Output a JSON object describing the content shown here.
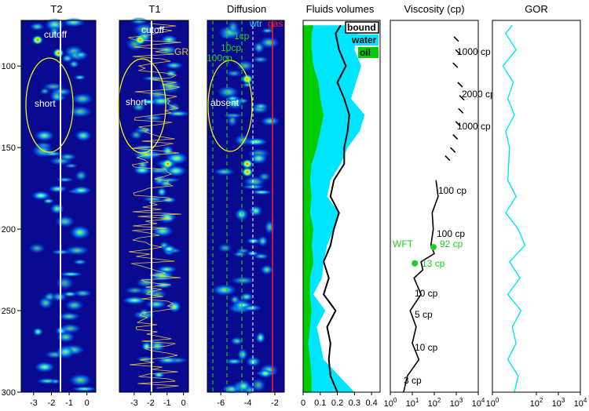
{
  "chart_data": [
    {
      "type": "heatmap",
      "title": "T2",
      "xticks": [
        "-3",
        "-2",
        "-1",
        "0"
      ],
      "yticks": [
        "100",
        "150",
        "200",
        "250",
        "300"
      ],
      "ylim": [
        300,
        72
      ],
      "annotations": {
        "cutoff": "cutoff",
        "short": "short"
      }
    },
    {
      "type": "heatmap",
      "title": "T1",
      "xticks": [
        "-3",
        "-2",
        "-1",
        "0"
      ],
      "annotations": {
        "cutoff": "cutoff",
        "short": "short",
        "gr": "GR"
      }
    },
    {
      "type": "heatmap",
      "title": "Diffusion",
      "xticks": [
        "-6",
        "-4",
        "-2"
      ],
      "annotations": {
        "wtr": "wtr",
        "gas": "gas",
        "cp1": "1cp",
        "cp10": "10cp",
        "cp100": "100cp",
        "absent": "absent"
      }
    },
    {
      "type": "area",
      "title": "Fluids volumes",
      "xticks": [
        "0",
        "0.1",
        "0.2",
        "0.3",
        "0.4"
      ],
      "xlim": [
        0,
        0.4
      ],
      "legend": [
        "bound",
        "water",
        "oil"
      ],
      "legend_position": "top-right",
      "depth": [
        75,
        80,
        90,
        100,
        110,
        120,
        130,
        140,
        150,
        160,
        170,
        180,
        190,
        200,
        210,
        220,
        230,
        240,
        250,
        260,
        270,
        280,
        290,
        300
      ],
      "bound": [
        0.22,
        0.19,
        0.21,
        0.25,
        0.2,
        0.24,
        0.27,
        0.26,
        0.24,
        0.24,
        0.18,
        0.16,
        0.21,
        0.18,
        0.16,
        0.12,
        0.15,
        0.12,
        0.19,
        0.14,
        0.16,
        0.15,
        0.16,
        0.2
      ],
      "total": [
        0.33,
        0.32,
        0.3,
        0.34,
        0.31,
        0.28,
        0.36,
        0.33,
        0.26,
        0.22,
        0.16,
        0.14,
        0.21,
        0.18,
        0.14,
        0.12,
        0.11,
        0.06,
        0.13,
        0.08,
        0.1,
        0.12,
        0.21,
        0.3
      ],
      "oil": [
        0.06,
        0.05,
        0.05,
        0.06,
        0.09,
        0.1,
        0.12,
        0.1,
        0.08,
        0.05,
        0.04,
        0.05,
        0.04,
        0.06,
        0.05,
        0.06,
        0.04,
        0.04,
        0.05,
        0.04,
        0.03,
        0.04,
        0.05,
        0.05
      ]
    },
    {
      "type": "line",
      "title": "Viscosity (cp)",
      "xscale": "log",
      "xticks": [
        "10^0",
        "10^1",
        "10^2",
        "10^3",
        "10^4"
      ],
      "xlim": [
        1,
        10000
      ],
      "depth": [
        170,
        180,
        190,
        200,
        210,
        215,
        220,
        225,
        230,
        240,
        250,
        260,
        270,
        280,
        290,
        300
      ],
      "viscosity": [
        120,
        150,
        80,
        90,
        70,
        100,
        25,
        30,
        12,
        25,
        8,
        15,
        10,
        20,
        6,
        4
      ],
      "upper_segments": [
        [
          1000,
          82
        ],
        [
          1200,
          90
        ],
        [
          900,
          98
        ],
        [
          1500,
          110
        ],
        [
          1800,
          118
        ],
        [
          1600,
          126
        ],
        [
          1200,
          134
        ],
        [
          900,
          142
        ],
        [
          700,
          150
        ],
        [
          400,
          155
        ]
      ],
      "labels": {
        "c1000a": "1000 cp",
        "c2000": "2000 cp",
        "c1000b": "1000 cp",
        "c100a": "100 cp",
        "c100b": "100 cp",
        "c92": "92 cp",
        "c13": "13 cp",
        "c10a": "10 cp",
        "c5": "5 cp",
        "c10b": "10 cp",
        "c3": "3 cp"
      },
      "wft": {
        "label": "WFT",
        "points": [
          {
            "viscosity": 92,
            "depth": 211
          },
          {
            "viscosity": 13,
            "depth": 221
          }
        ]
      }
    },
    {
      "type": "line",
      "title": "GOR",
      "xscale": "log",
      "xticks": [
        "10^0",
        "10^2",
        "10^3",
        "10^4"
      ],
      "xlim": [
        1,
        10000
      ],
      "depth": [
        75,
        80,
        90,
        100,
        110,
        120,
        130,
        140,
        150,
        170,
        180,
        190,
        200,
        210,
        220,
        230,
        240,
        250,
        260,
        270,
        280,
        290,
        300
      ],
      "gor": [
        8,
        4,
        12,
        3,
        9,
        5,
        10,
        4,
        6,
        5,
        12,
        4,
        15,
        30,
        6,
        18,
        5,
        20,
        8,
        12,
        5,
        15,
        10
      ]
    }
  ],
  "colors": {
    "water": "#00e5ff",
    "oil": "#00cc00",
    "bound": "#000000",
    "wft": "#22cc22",
    "gor": "#00e5ff",
    "guide": "#ffff00",
    "gas": "#ff0000"
  }
}
